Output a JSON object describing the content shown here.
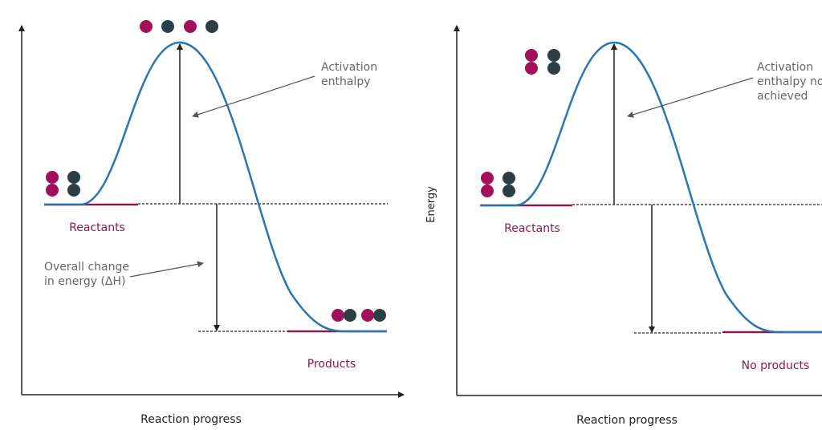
{
  "left": {
    "activation_label": [
      "Activation",
      "enthalpy"
    ],
    "reactants": "Reactants",
    "overall_label": [
      "Overall change",
      "in energy (ΔH)"
    ],
    "products": "Products",
    "x_axis": "Reaction progress"
  },
  "right": {
    "activation_label": [
      "Activation",
      "enthalpy no",
      "achieved"
    ],
    "y_axis": "Energy",
    "reactants": "Reactants",
    "products": "No products",
    "x_axis": "Reaction progress"
  }
}
